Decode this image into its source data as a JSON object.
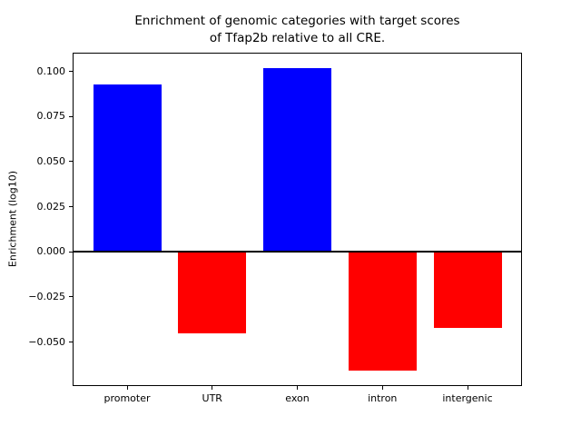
{
  "figure": {
    "background": "#ffffff",
    "text_color": "#000000"
  },
  "chart_data": {
    "type": "bar",
    "title": "Enrichment of genomic categories with target scores\nof Tfap2b relative to all CRE.",
    "ylabel": "Enrichment (log10)",
    "xlabel": "",
    "categories": [
      "promoter",
      "UTR",
      "exon",
      "intron",
      "intergenic"
    ],
    "values": [
      0.093,
      -0.045,
      0.102,
      -0.066,
      -0.042
    ],
    "bar_colors": [
      "#0000ff",
      "#ff0000",
      "#0000ff",
      "#ff0000",
      "#ff0000"
    ],
    "positive_color": "#0000ff",
    "negative_color": "#ff0000",
    "ylim": [
      -0.0744,
      0.1104
    ],
    "xlim": [
      -0.64,
      4.64
    ],
    "bar_width": 0.8,
    "yticks": [
      {
        "value": 0.1,
        "label": "0.100"
      },
      {
        "value": 0.075,
        "label": "0.075"
      },
      {
        "value": 0.05,
        "label": "0.050"
      },
      {
        "value": 0.025,
        "label": "0.025"
      },
      {
        "value": 0.0,
        "label": "0.000"
      },
      {
        "value": -0.025,
        "label": "−0.025"
      },
      {
        "value": -0.05,
        "label": "−0.050"
      }
    ],
    "grid": false,
    "legend": false,
    "zero_line_color": "#000000",
    "frame_color": "#000000"
  }
}
